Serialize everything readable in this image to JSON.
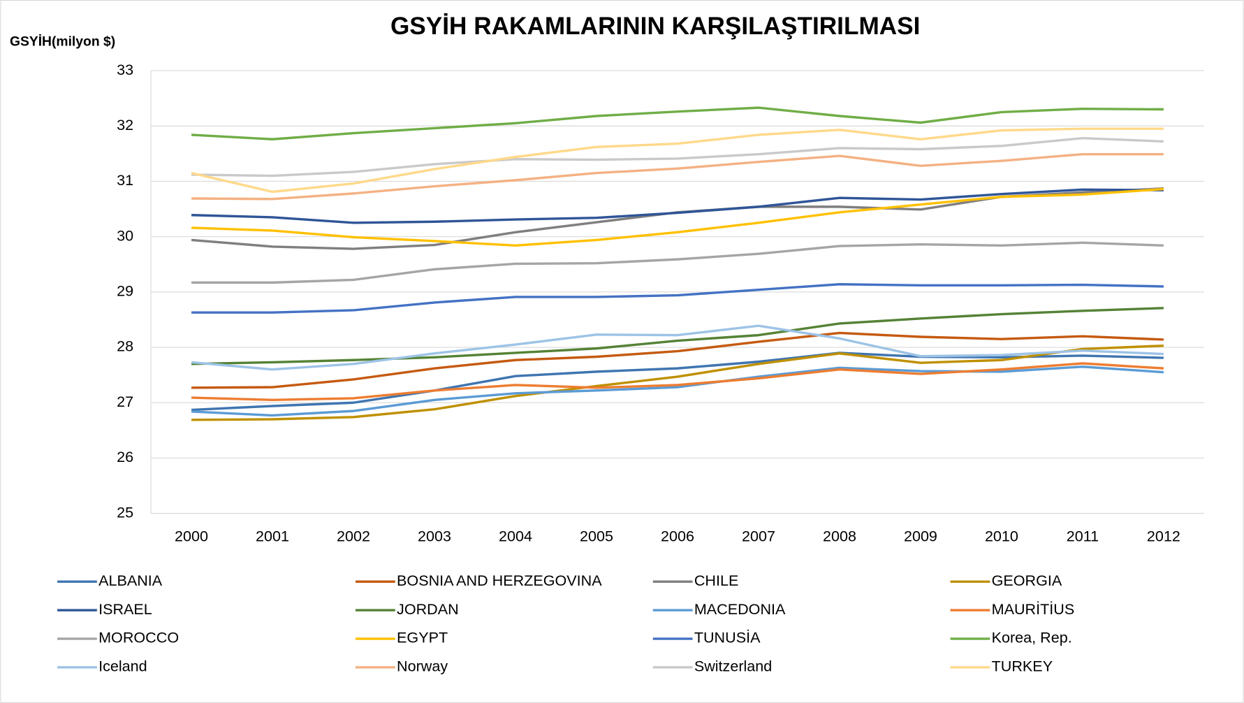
{
  "chart_data": {
    "type": "line",
    "title": "GSYİH RAKAMLARININ KARŞILAŞTIRILMASI",
    "y_label": "GSYİH(milyon $)",
    "categories": [
      "2000",
      "2001",
      "2002",
      "2003",
      "2004",
      "2005",
      "2006",
      "2007",
      "2008",
      "2009",
      "2010",
      "2011",
      "2012"
    ],
    "ylim": [
      25,
      33
    ],
    "yticks": [
      25,
      26,
      27,
      28,
      29,
      30,
      31,
      32,
      33
    ],
    "grid": true,
    "legend": "bottom",
    "series": [
      {
        "name": "ALBANIA",
        "color": "#3f75b0",
        "values": [
          26.87,
          26.94,
          27.0,
          27.22,
          27.48,
          27.56,
          27.62,
          27.74,
          27.9,
          27.83,
          27.82,
          27.85,
          27.81
        ]
      },
      {
        "name": "BOSNIA AND HERZEGOVINA",
        "color": "#c55a11",
        "values": [
          27.27,
          27.28,
          27.42,
          27.62,
          27.77,
          27.83,
          27.93,
          28.1,
          28.26,
          28.19,
          28.15,
          28.2,
          28.14
        ]
      },
      {
        "name": "CHILE",
        "color": "#7f7f7f",
        "values": [
          29.94,
          29.82,
          29.78,
          29.85,
          30.08,
          30.26,
          30.44,
          30.54,
          30.54,
          30.49,
          30.72,
          30.8,
          30.87
        ]
      },
      {
        "name": "GEORGIA",
        "color": "#bf9000",
        "values": [
          26.69,
          26.7,
          26.74,
          26.88,
          27.12,
          27.3,
          27.47,
          27.7,
          27.89,
          27.72,
          27.77,
          27.97,
          28.03
        ]
      },
      {
        "name": "ISRAEL",
        "color": "#2f5597",
        "values": [
          30.39,
          30.35,
          30.25,
          30.27,
          30.31,
          30.34,
          30.43,
          30.54,
          30.7,
          30.67,
          30.77,
          30.85,
          30.84
        ]
      },
      {
        "name": "JORDAN",
        "color": "#548235",
        "values": [
          27.7,
          27.73,
          27.77,
          27.82,
          27.9,
          27.98,
          28.12,
          28.22,
          28.43,
          28.52,
          28.6,
          28.66,
          28.71
        ]
      },
      {
        "name": "MACEDONIA",
        "color": "#5b9bd5",
        "values": [
          26.84,
          26.77,
          26.85,
          27.05,
          27.17,
          27.22,
          27.28,
          27.47,
          27.63,
          27.57,
          27.56,
          27.65,
          27.55
        ]
      },
      {
        "name": "MAURİTİUS",
        "color": "#ed7d31",
        "values": [
          27.09,
          27.05,
          27.08,
          27.22,
          27.32,
          27.27,
          27.32,
          27.44,
          27.6,
          27.52,
          27.6,
          27.71,
          27.62
        ]
      },
      {
        "name": "MOROCCO",
        "color": "#a5a5a5",
        "values": [
          29.17,
          29.17,
          29.22,
          29.41,
          29.51,
          29.52,
          29.59,
          29.69,
          29.83,
          29.86,
          29.84,
          29.89,
          29.84
        ]
      },
      {
        "name": "EGYPT",
        "color": "#ffc000",
        "values": [
          30.16,
          30.11,
          29.99,
          29.92,
          29.84,
          29.94,
          30.08,
          30.25,
          30.44,
          30.58,
          30.72,
          30.76,
          30.86
        ]
      },
      {
        "name": "TUNUSİA",
        "color": "#4472c4",
        "values": [
          28.63,
          28.63,
          28.67,
          28.81,
          28.91,
          28.91,
          28.94,
          29.04,
          29.14,
          29.12,
          29.12,
          29.13,
          29.1
        ]
      },
      {
        "name": "Korea, Rep.",
        "color": "#70ad47",
        "values": [
          31.84,
          31.76,
          31.87,
          31.96,
          32.05,
          32.18,
          32.26,
          32.33,
          32.18,
          32.06,
          32.25,
          32.31,
          32.3
        ]
      },
      {
        "name": "Iceland",
        "color": "#9dc3e6",
        "values": [
          27.73,
          27.6,
          27.7,
          27.89,
          28.05,
          28.23,
          28.22,
          28.39,
          28.16,
          27.84,
          27.86,
          27.94,
          27.88
        ]
      },
      {
        "name": "Norway",
        "color": "#f4b183",
        "values": [
          30.69,
          30.68,
          30.78,
          30.91,
          31.02,
          31.15,
          31.23,
          31.35,
          31.46,
          31.28,
          31.37,
          31.49,
          31.49
        ]
      },
      {
        "name": "Switzerland",
        "color": "#c9c9c9",
        "values": [
          31.12,
          31.1,
          31.17,
          31.31,
          31.4,
          31.39,
          31.41,
          31.49,
          31.6,
          31.58,
          31.64,
          31.78,
          31.72
        ]
      },
      {
        "name": "TURKEY",
        "color": "#ffd98a",
        "values": [
          31.15,
          30.81,
          30.96,
          31.22,
          31.44,
          31.62,
          31.68,
          31.84,
          31.93,
          31.76,
          31.92,
          31.95,
          31.95
        ]
      }
    ]
  }
}
